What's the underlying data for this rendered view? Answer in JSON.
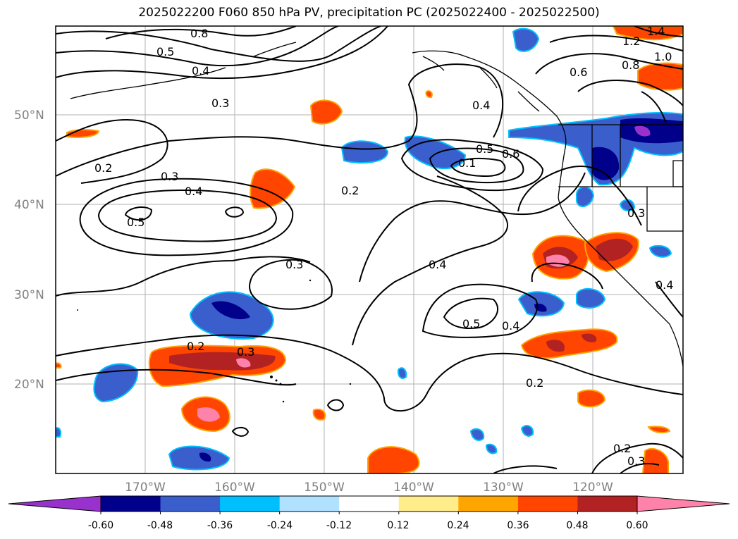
{
  "title": "2025022200 F060 850 hPa PV, precipitation PC (2025022400 - 2025022500)",
  "latitude_labels": [
    "50°N",
    "40°N",
    "30°N",
    "20°N"
  ],
  "longitude_labels": [
    "170°W",
    "160°W",
    "150°W",
    "140°W",
    "130°W",
    "120°W"
  ],
  "colorbar": {
    "colors": [
      "#9932CC",
      "#00008B",
      "#3A5FCD",
      "#00BFFF",
      "#B0E2FF",
      "#FFFFFF",
      "#FFEC8B",
      "#FFA500",
      "#FF4500",
      "#B22222",
      "#FF82AB"
    ],
    "tick_labels": [
      "-0.60",
      "-0.48",
      "-0.36",
      "-0.24",
      "-0.12",
      "0.12",
      "0.24",
      "0.36",
      "0.48",
      "0.60"
    ]
  },
  "contour_labels": [
    "0.8",
    "0.5",
    "0.4",
    "0.3",
    "0.2",
    "0.3",
    "0.4",
    "0.5",
    "0.2",
    "0.4",
    "0.5",
    "0.6",
    "0.1",
    "0.6",
    "0.8",
    "1.0",
    "1.2",
    "1.4",
    "0.3",
    "0.4",
    "0.5",
    "0.4",
    "0.2",
    "0.3",
    "0.2",
    "0.2",
    "0.3",
    "0.4",
    "0.3"
  ]
}
